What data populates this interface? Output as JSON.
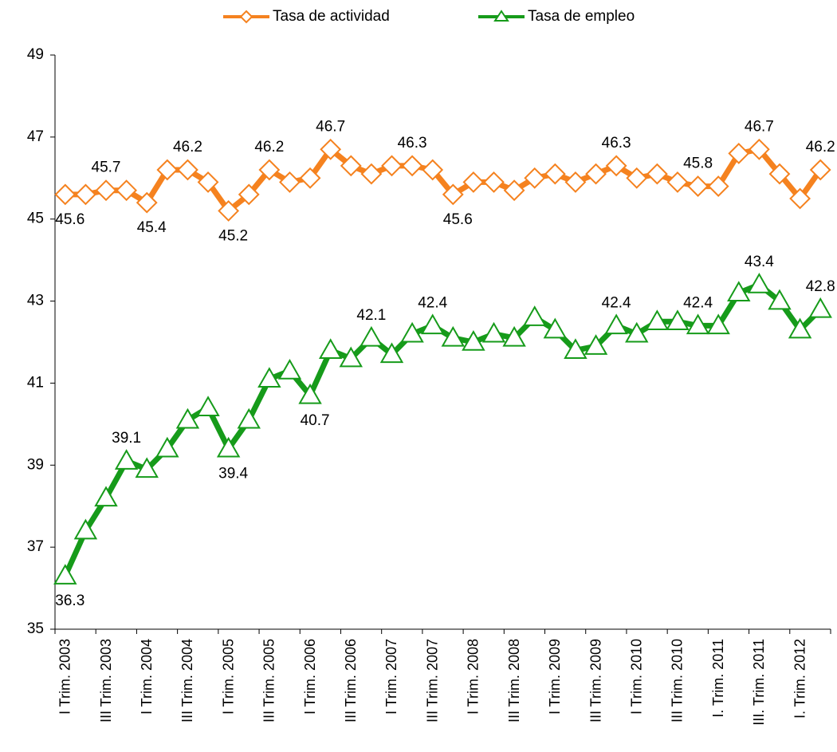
{
  "chart_data": {
    "type": "line",
    "categories": [
      "I Trim. 2003",
      null,
      "III Trim. 2003",
      null,
      "I Trim. 2004",
      null,
      "III Trim. 2004",
      null,
      "I Trim. 2005",
      null,
      "III Trim. 2005",
      null,
      "I Trim. 2006",
      null,
      "III Trim. 2006",
      null,
      "I Trim. 2007",
      null,
      "III Trim. 2007",
      null,
      "I Trim. 2008",
      null,
      "III Trim. 2008",
      null,
      "I Trim. 2009",
      null,
      "III Trim. 2009",
      null,
      "I Trim. 2010",
      null,
      "III Trim. 2010",
      null,
      "I. Trim. 2011",
      null,
      "III. Trim. 2011",
      null,
      "I. Trim. 2012",
      null
    ],
    "series": [
      {
        "name": "Tasa de actividad",
        "color": "#f5821f",
        "marker": "diamond",
        "values": [
          45.6,
          45.6,
          45.7,
          45.7,
          45.4,
          46.2,
          46.2,
          45.9,
          45.2,
          45.6,
          46.2,
          45.9,
          46.0,
          46.7,
          46.3,
          46.1,
          46.3,
          46.3,
          46.2,
          45.6,
          45.9,
          45.9,
          45.7,
          46.0,
          46.1,
          45.9,
          46.1,
          46.3,
          46.0,
          46.1,
          45.9,
          45.8,
          45.8,
          46.6,
          46.7,
          46.1,
          45.5,
          46.2
        ],
        "labels": {
          "above": [
            2,
            6,
            10,
            13,
            17,
            27,
            31,
            34,
            37
          ],
          "below": [
            0,
            4,
            8,
            19
          ]
        }
      },
      {
        "name": "Tasa de empleo",
        "color": "#169b1a",
        "marker": "triangle",
        "values": [
          36.3,
          37.4,
          38.2,
          39.1,
          38.9,
          39.4,
          40.1,
          40.4,
          39.4,
          40.1,
          41.1,
          41.3,
          40.7,
          41.8,
          41.6,
          42.1,
          41.7,
          42.2,
          42.4,
          42.1,
          42.0,
          42.2,
          42.1,
          42.6,
          42.3,
          41.8,
          41.9,
          42.4,
          42.2,
          42.5,
          42.5,
          42.4,
          42.4,
          43.2,
          43.4,
          43.0,
          42.3,
          42.8
        ],
        "labels": {
          "above": [
            3,
            15,
            18,
            27,
            31,
            34,
            37
          ],
          "below": [
            0,
            8,
            12
          ]
        }
      }
    ],
    "ylim": [
      35,
      49
    ],
    "yticks": [
      35,
      37,
      39,
      41,
      43,
      45,
      47,
      49
    ],
    "legend": "top"
  }
}
